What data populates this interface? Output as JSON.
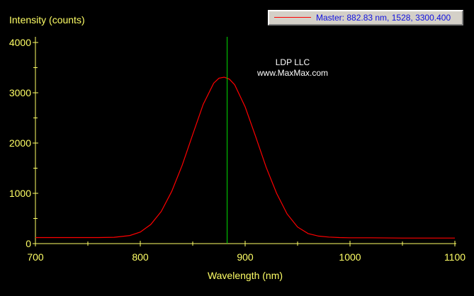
{
  "legend": {
    "label": "Master: 882.83 nm, 1528, 3300.400",
    "line_color": "#ff0000",
    "text_color": "#1010e0"
  },
  "annotations": {
    "line1": "LDP LLC",
    "line2": "www.MaxMax.com"
  },
  "colors": {
    "background": "#000000",
    "axis": "#ffff66",
    "curve": "#ff0000",
    "marker": "#00dd00"
  },
  "chart_data": {
    "type": "line",
    "xlabel": "Wavelength (nm)",
    "ylabel": "Intensity (counts)",
    "xlim": [
      700,
      1100
    ],
    "ylim": [
      0,
      4000
    ],
    "x_ticks": [
      700,
      800,
      900,
      1000,
      1100
    ],
    "y_ticks": [
      0,
      1000,
      2000,
      3000,
      4000
    ],
    "marker_x": 882.83,
    "grid": false,
    "legend_position": "top-right",
    "series": [
      {
        "x": [
          700,
          720,
          740,
          760,
          775,
          790,
          800,
          810,
          820,
          830,
          840,
          850,
          860,
          870,
          875,
          880,
          885,
          890,
          900,
          910,
          920,
          930,
          940,
          950,
          960,
          970,
          980,
          990,
          1000,
          1020,
          1050,
          1075,
          1100
        ],
        "values": [
          120,
          120,
          120,
          120,
          125,
          160,
          230,
          380,
          640,
          1040,
          1560,
          2170,
          2770,
          3190,
          3290,
          3310,
          3270,
          3160,
          2720,
          2130,
          1520,
          1000,
          590,
          330,
          200,
          150,
          130,
          120,
          115,
          115,
          110,
          110,
          110
        ]
      }
    ]
  }
}
